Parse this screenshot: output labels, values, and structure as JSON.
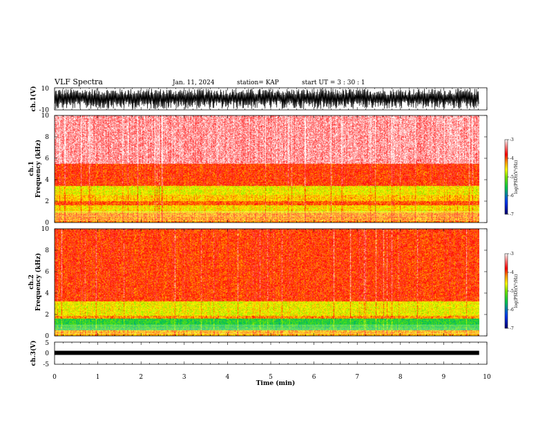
{
  "header": {
    "title": "VLF Spectra",
    "date": "Jan. 11, 2024",
    "station": "station= KAP",
    "start": "start  UT  =   3 : 30 : 1"
  },
  "colors": {
    "low": "#000080",
    "mid_low": "#00c000",
    "mid": "#ffff00",
    "high": "#ff0000",
    "top": "#ffffff",
    "trace": "#000000"
  },
  "chart_data": [
    {
      "type": "line",
      "name": "ch1-waveform",
      "ylabel": "ch.1(V)",
      "ylim": [
        -10,
        10
      ],
      "yticks": [
        "10",
        "-10"
      ],
      "xlim": [
        0,
        10
      ]
    },
    {
      "type": "heatmap",
      "name": "ch1-spectrogram",
      "ylabel": "ch.1\nFrequency  (kHz)",
      "ylabel_lines": [
        "ch.1",
        "Frequency  (kHz)"
      ],
      "ylim": [
        0,
        10
      ],
      "yticks": [
        "0",
        "2",
        "4",
        "6",
        "8",
        "10"
      ],
      "xlim": [
        0,
        10
      ],
      "colorbar": {
        "label": "log(PSD)(V²/Hz)",
        "range": [
          -7,
          -3
        ],
        "ticks": [
          "-3",
          "-4",
          "-5",
          "-6",
          "-7"
        ]
      },
      "bands": [
        {
          "from": 0.0,
          "to": 0.9,
          "level": -4.2
        },
        {
          "from": 0.9,
          "to": 1.6,
          "level": -4.5
        },
        {
          "from": 1.6,
          "to": 2.0,
          "level": -4.0
        },
        {
          "from": 2.0,
          "to": 2.6,
          "level": -4.4
        },
        {
          "from": 2.6,
          "to": 3.4,
          "level": -4.6
        },
        {
          "from": 3.4,
          "to": 5.5,
          "level": -3.9
        },
        {
          "from": 5.5,
          "to": 10.0,
          "level": -3.3
        }
      ]
    },
    {
      "type": "heatmap",
      "name": "ch2-spectrogram",
      "ylabel_lines": [
        "ch.2",
        "Frequency  (kHz)"
      ],
      "ylim": [
        0,
        10
      ],
      "yticks": [
        "0",
        "2",
        "4",
        "6",
        "8",
        "10"
      ],
      "xlim": [
        0,
        10
      ],
      "colorbar": {
        "label": "log(PSD)(V²/Hz)",
        "range": [
          -7,
          -3
        ],
        "ticks": [
          "-3",
          "-4",
          "-5",
          "-6",
          "-7"
        ]
      },
      "bands": [
        {
          "from": 0.0,
          "to": 0.5,
          "level": -4.3
        },
        {
          "from": 0.5,
          "to": 1.6,
          "level": -5.4
        },
        {
          "from": 1.6,
          "to": 1.9,
          "level": -4.2
        },
        {
          "from": 1.9,
          "to": 3.2,
          "level": -4.6
        },
        {
          "from": 3.2,
          "to": 10.0,
          "level": -3.9
        }
      ]
    },
    {
      "type": "line",
      "name": "ch3-waveform",
      "ylabel": "ch.3(V)",
      "ylim": [
        -5,
        5
      ],
      "yticks": [
        "5",
        "0",
        "-5"
      ],
      "xlim": [
        0,
        10
      ],
      "level": 0
    }
  ],
  "xaxis": {
    "label": "Time  (min)",
    "ticks": [
      "0",
      "1",
      "2",
      "3",
      "4",
      "5",
      "6",
      "7",
      "8",
      "9",
      "10"
    ],
    "range": [
      0,
      10
    ],
    "data_end": 9.82
  }
}
